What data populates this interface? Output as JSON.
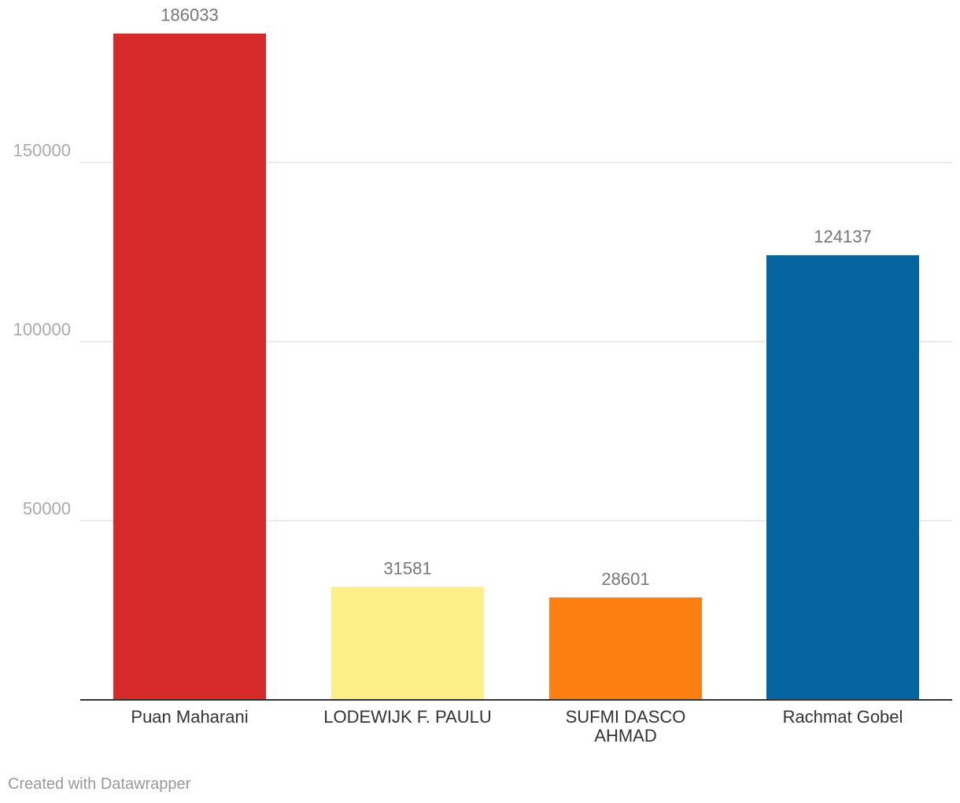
{
  "chart_data": {
    "type": "bar",
    "title": "",
    "xlabel": "",
    "ylabel": "",
    "ylim": [
      0,
      190000
    ],
    "yticks": [
      50000,
      100000,
      150000
    ],
    "grid": true,
    "categories": [
      [
        "Puan Maharani"
      ],
      [
        "LODEWIJK F. PAULU"
      ],
      [
        "SUFMI DASCO",
        "AHMAD"
      ],
      [
        "Rachmat Gobel"
      ]
    ],
    "values": [
      186033,
      31581,
      28601,
      124137
    ],
    "colors": [
      "#d52a29",
      "#fcee88",
      "#fd7f12",
      "#0564a0"
    ]
  },
  "footer": {
    "credit": "Created with Datawrapper"
  }
}
